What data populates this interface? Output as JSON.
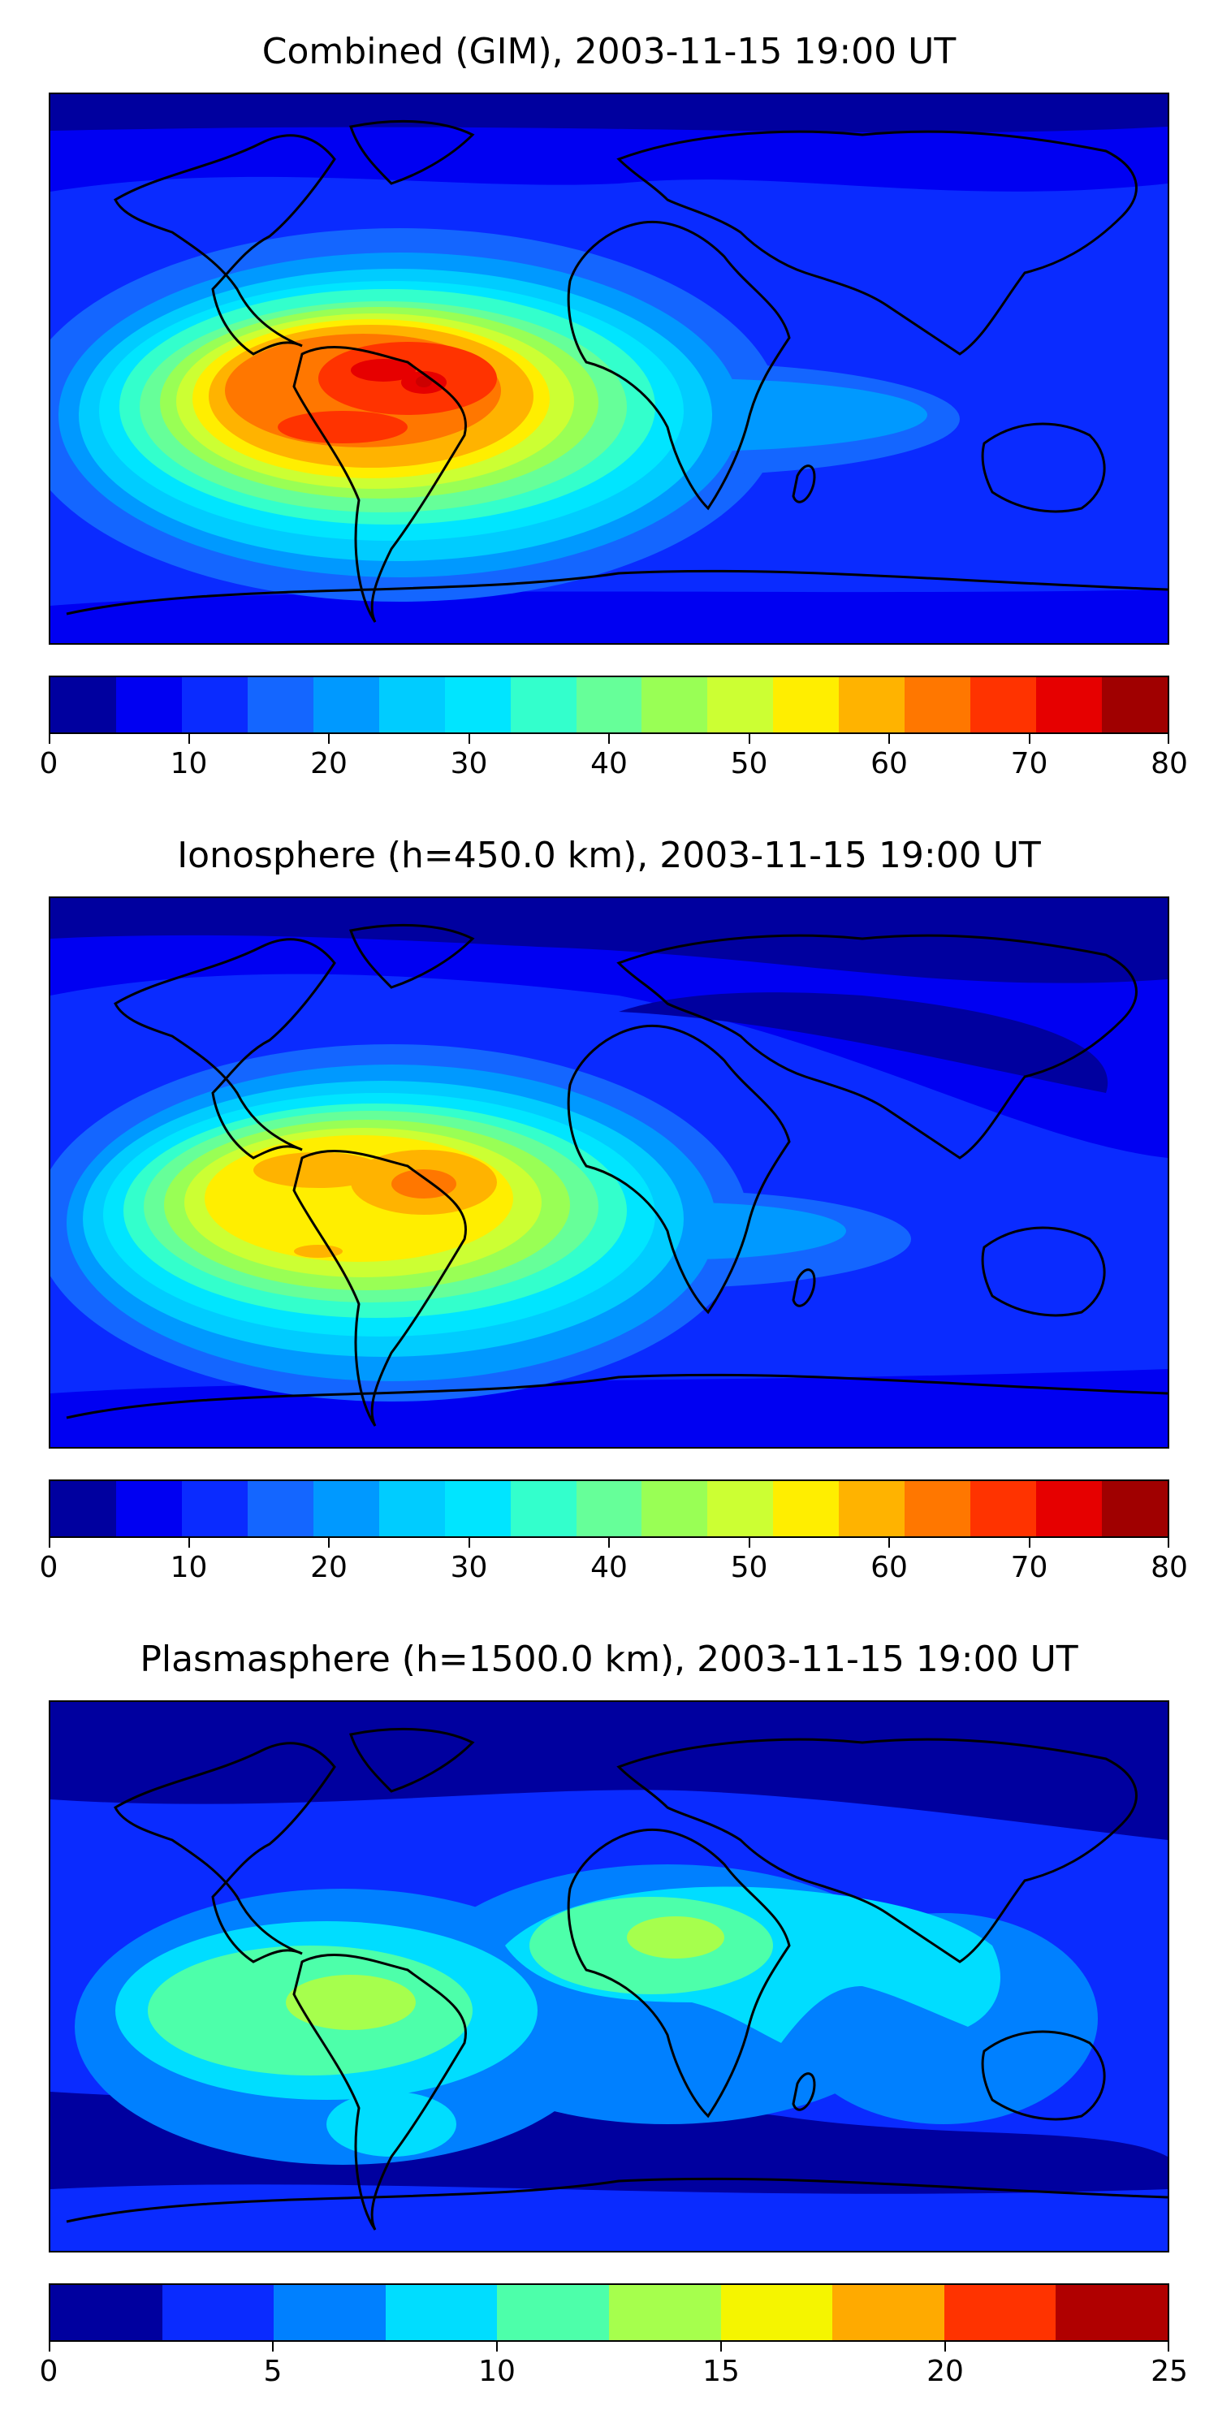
{
  "panels": [
    {
      "title": "Combined (GIM), 2003-11-15 19:00 UT",
      "colorbar": {
        "ticks": [
          0,
          10,
          20,
          30,
          40,
          50,
          60,
          70,
          80
        ],
        "levels": [
          0,
          5,
          10,
          15,
          20,
          25,
          30,
          35,
          40,
          45,
          50,
          55,
          60,
          65,
          70,
          75,
          80
        ],
        "colors": [
          "#00009f",
          "#0000f2",
          "#0a2bff",
          "#1466ff",
          "#0099ff",
          "#00ccff",
          "#00e5ff",
          "#33ffcc",
          "#66ff99",
          "#99ff55",
          "#ccff33",
          "#ffee00",
          "#ffb300",
          "#ff7700",
          "#ff3300",
          "#e60000",
          "#a00000"
        ]
      }
    },
    {
      "title": "Ionosphere  (h=450.0 km), 2003-11-15 19:00 UT",
      "colorbar": {
        "ticks": [
          0,
          10,
          20,
          30,
          40,
          50,
          60,
          70,
          80
        ],
        "levels": [
          0,
          5,
          10,
          15,
          20,
          25,
          30,
          35,
          40,
          45,
          50,
          55,
          60,
          65,
          70,
          75,
          80
        ],
        "colors": [
          "#00009f",
          "#0000f2",
          "#0a2bff",
          "#1466ff",
          "#0099ff",
          "#00ccff",
          "#00e5ff",
          "#33ffcc",
          "#66ff99",
          "#99ff55",
          "#ccff33",
          "#ffee00",
          "#ffb300",
          "#ff7700",
          "#ff3300",
          "#e60000",
          "#a00000"
        ]
      }
    },
    {
      "title": "Plasmasphere (h=1500.0 km), 2003-11-15 19:00 UT",
      "colorbar": {
        "ticks": [
          0,
          5,
          10,
          15,
          20,
          25
        ],
        "levels": [
          0,
          2.5,
          5,
          7.5,
          10,
          12.5,
          15,
          17.5,
          20,
          22.5,
          25
        ],
        "colors": [
          "#00009f",
          "#0a2bff",
          "#0080ff",
          "#00ddff",
          "#4dffaa",
          "#a6ff4d",
          "#f5f500",
          "#ffaa00",
          "#ff3300",
          "#b00000"
        ]
      }
    }
  ]
}
